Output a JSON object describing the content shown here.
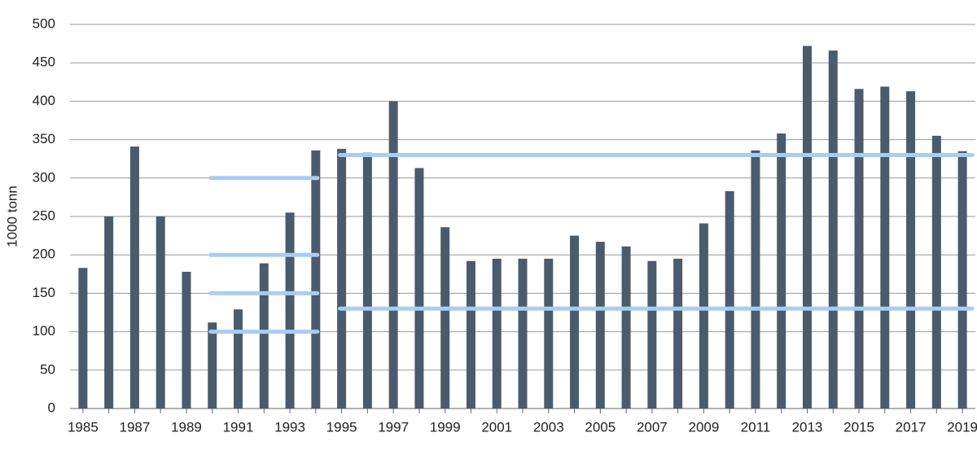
{
  "chart_data": {
    "type": "bar",
    "y_label": "1000 tonn",
    "categories": [
      "1985",
      null,
      "1987",
      null,
      "1989",
      null,
      "1991",
      null,
      "1993",
      null,
      "1995",
      null,
      "1997",
      null,
      "1999",
      null,
      "2001",
      null,
      "2003",
      null,
      "2005",
      null,
      "2007",
      null,
      "2009",
      null,
      "2011",
      null,
      "2013",
      null,
      "2015",
      null,
      "2017",
      null,
      "2019"
    ],
    "values": [
      183,
      250,
      341,
      250,
      178,
      112,
      129,
      189,
      255,
      336,
      338,
      333,
      400,
      313,
      236,
      192,
      195,
      195,
      195,
      225,
      217,
      211,
      192,
      195,
      241,
      283,
      336,
      358,
      472,
      466,
      416,
      419,
      413,
      355,
      335
    ],
    "color": "#4a5b6e",
    "ylim": [
      0,
      500
    ],
    "yticks": [
      0,
      50,
      100,
      150,
      200,
      250,
      300,
      350,
      400,
      450,
      500
    ],
    "grid": true,
    "reference_lines": {
      "color": "#a9cdf0",
      "lines": [
        {
          "value": 300,
          "from": 5,
          "to": 9
        },
        {
          "value": 200,
          "from": 5,
          "to": 9
        },
        {
          "value": 150,
          "from": 5,
          "to": 9
        },
        {
          "value": 100,
          "from": 5,
          "to": 9
        },
        {
          "value": 330,
          "from": 10,
          "to": 34
        },
        {
          "value": 130,
          "from": 10,
          "to": 34
        }
      ]
    }
  }
}
